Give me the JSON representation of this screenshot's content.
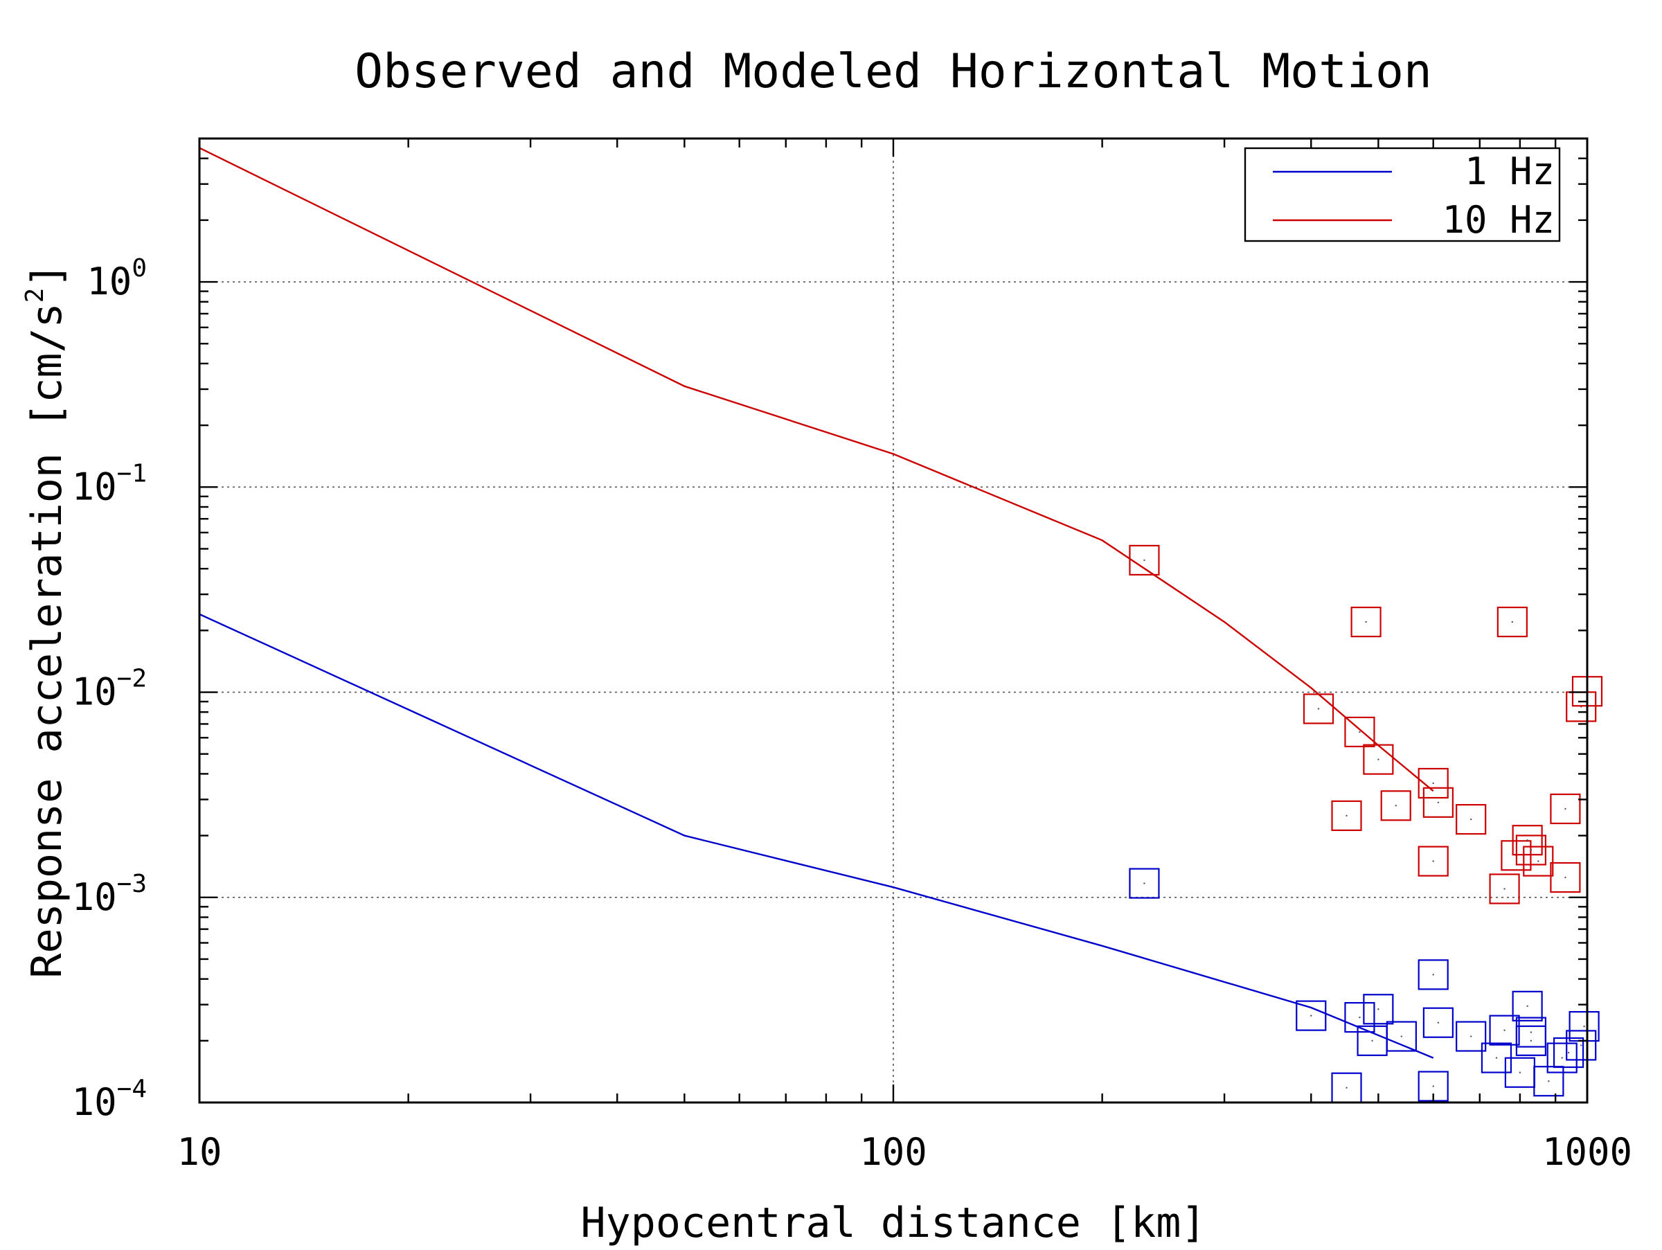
{
  "chart_data": {
    "type": "scatter",
    "title": "Observed and Modeled Horizontal Motion",
    "xlabel": "Hypocentral distance [km]",
    "ylabel": "Response acceleration [cm/s",
    "ylabel_sup": "2",
    "ylabel_end": "]",
    "xscale": "log",
    "yscale": "log",
    "xlim": [
      10,
      1000
    ],
    "ylim": [
      0.0001,
      5
    ],
    "grid": true,
    "legend_position": "top-right",
    "x_ticks": [
      {
        "value": 10,
        "label": "10"
      },
      {
        "value": 100,
        "label": "100"
      },
      {
        "value": 1000,
        "label": "1000"
      }
    ],
    "y_ticks": [
      {
        "value": 1,
        "base": "10",
        "exp": "0"
      },
      {
        "value": 0.1,
        "base": "10",
        "exp": "−1"
      },
      {
        "value": 0.01,
        "base": "10",
        "exp": "−2"
      },
      {
        "value": 0.001,
        "base": "10",
        "exp": "−3"
      },
      {
        "value": 0.0001,
        "base": "10",
        "exp": "−4"
      }
    ],
    "series": [
      {
        "name": "1 Hz",
        "color": "#0000cc",
        "model": [
          [
            10,
            0.024
          ],
          [
            50,
            0.002
          ],
          [
            100,
            0.00112
          ],
          [
            200,
            0.00058
          ],
          [
            400,
            0.00029
          ],
          [
            600,
            0.000165
          ]
        ],
        "observed": [
          [
            230,
            0.00117
          ],
          [
            400,
            0.000265
          ],
          [
            450,
            0.000118
          ],
          [
            470,
            0.00026
          ],
          [
            490,
            0.0002
          ],
          [
            500,
            0.000285
          ],
          [
            540,
            0.00021
          ],
          [
            600,
            0.00042
          ],
          [
            600,
            0.00012
          ],
          [
            610,
            0.000245
          ],
          [
            680,
            0.00021
          ],
          [
            740,
            0.000165
          ],
          [
            760,
            0.000225
          ],
          [
            800,
            0.00014
          ],
          [
            820,
            0.000295
          ],
          [
            830,
            0.00022
          ],
          [
            830,
            0.0002
          ],
          [
            880,
            0.000127
          ],
          [
            920,
            0.000165
          ],
          [
            940,
            0.000175
          ],
          [
            980,
            0.00019
          ],
          [
            990,
            0.000235
          ]
        ]
      },
      {
        "name": "10 Hz",
        "color": "#cc0000",
        "model": [
          [
            10,
            4.5
          ],
          [
            50,
            0.31
          ],
          [
            100,
            0.145
          ],
          [
            200,
            0.055
          ],
          [
            300,
            0.022
          ],
          [
            400,
            0.0105
          ],
          [
            500,
            0.0055
          ],
          [
            600,
            0.0033
          ]
        ],
        "observed": [
          [
            230,
            0.044
          ],
          [
            410,
            0.0083
          ],
          [
            450,
            0.0025
          ],
          [
            470,
            0.0064
          ],
          [
            480,
            0.022
          ],
          [
            500,
            0.0047
          ],
          [
            530,
            0.0028
          ],
          [
            600,
            0.0015
          ],
          [
            600,
            0.0036
          ],
          [
            610,
            0.0029
          ],
          [
            680,
            0.0024
          ],
          [
            760,
            0.0011
          ],
          [
            780,
            0.022
          ],
          [
            790,
            0.0016
          ],
          [
            820,
            0.0019
          ],
          [
            830,
            0.0017
          ],
          [
            850,
            0.0015
          ],
          [
            930,
            0.00125
          ],
          [
            930,
            0.0027
          ],
          [
            980,
            0.0085
          ],
          [
            1000,
            0.0101
          ]
        ]
      }
    ]
  }
}
